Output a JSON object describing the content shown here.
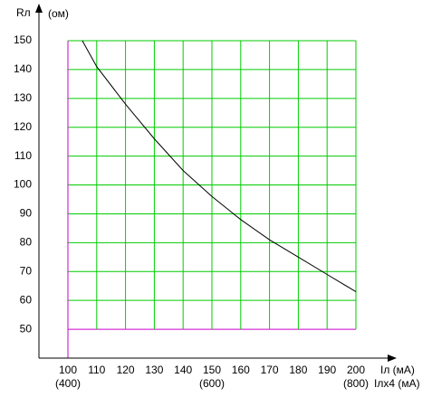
{
  "chart_data": {
    "type": "line",
    "y_label": "Rл",
    "y_unit": "(ом)",
    "x_label": "Iл (мА)",
    "x2_label": "Iлx4 (мА)",
    "x": [
      105,
      110,
      120,
      130,
      140,
      150,
      160,
      170,
      180,
      190,
      200
    ],
    "values": [
      150,
      141,
      128,
      116,
      105,
      96,
      88,
      81,
      75,
      69,
      63
    ],
    "color": "#000000",
    "xlim": [
      90,
      200
    ],
    "xticks": [
      100,
      110,
      120,
      130,
      140,
      150,
      160,
      170,
      180,
      190,
      200
    ],
    "x2ticks": [
      {
        "value": 100,
        "label": "(400)"
      },
      {
        "value": 150,
        "label": "(600)"
      },
      {
        "value": 200,
        "label": "(800)"
      }
    ],
    "ylim": [
      40,
      150
    ],
    "yticks": [
      50,
      60,
      70,
      80,
      90,
      100,
      110,
      120,
      130,
      140,
      150
    ],
    "grid": true,
    "grid_color": "#00cc00",
    "accent_grid_color": "#cc00cc"
  }
}
